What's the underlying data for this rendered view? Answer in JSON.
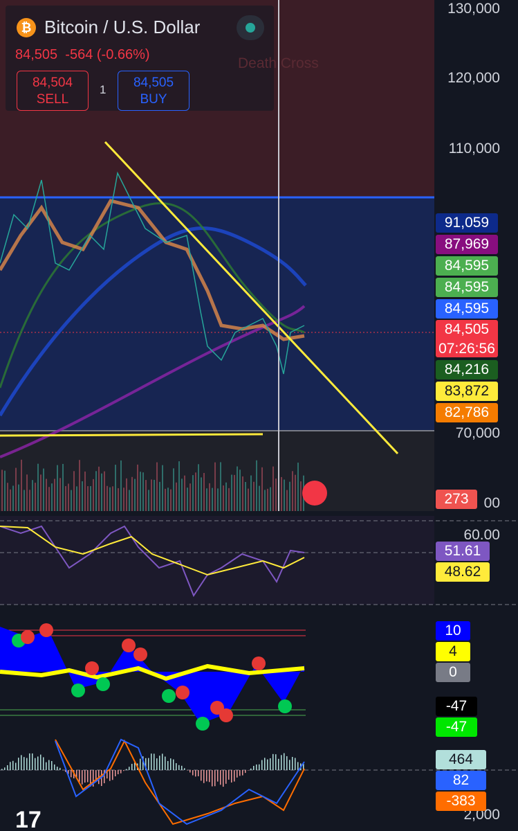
{
  "header": {
    "title": "Bitcoin / U.S. Dollar",
    "price": "84,505",
    "change": "-564 (-0.66%)",
    "sell": {
      "price": "84,504",
      "label": "SELL"
    },
    "spread": "1",
    "buy": {
      "price": "84,505",
      "label": "BUY"
    }
  },
  "annotation": "Death Cross",
  "price_axis": [
    "130,000",
    "120,000",
    "110,000",
    "70,000",
    "00",
    "60.00",
    "2,000"
  ],
  "price_badges": [
    {
      "text": "91,059",
      "color": "#0d2a8a"
    },
    {
      "text": "87,969",
      "color": "#880e7f"
    },
    {
      "text": "84,595",
      "color": "#4caf50"
    },
    {
      "text": "84,595",
      "color": "#4caf50"
    },
    {
      "text": "84,595",
      "color": "#2962ff"
    },
    {
      "text": "84,505",
      "time": "07:26:56",
      "color": "#f23645"
    },
    {
      "text": "84,216",
      "color": "#1b5e20"
    },
    {
      "text": "83,872",
      "color": "#ffeb3b"
    },
    {
      "text": "82,786",
      "color": "#f57c00"
    }
  ],
  "volume_badge": {
    "text": "273",
    "color": "#ef5350"
  },
  "rsi_badges": [
    {
      "text": "51.61",
      "color": "#7e57c2"
    },
    {
      "text": "48.62",
      "color": "#ffeb3b"
    }
  ],
  "oscillator_badges": [
    {
      "text": "10",
      "color": "#0000ff"
    },
    {
      "text": "4",
      "color": "#ffff00"
    },
    {
      "text": "0",
      "color": "#787b86"
    },
    {
      "text": "-47",
      "color": "#000000"
    },
    {
      "text": "-47",
      "color": "#00e600"
    }
  ],
  "macd_badges": [
    {
      "text": "464",
      "color": "#b2dfdb"
    },
    {
      "text": "82",
      "color": "#2962ff"
    },
    {
      "text": "-383",
      "color": "#ff6d00"
    }
  ]
}
